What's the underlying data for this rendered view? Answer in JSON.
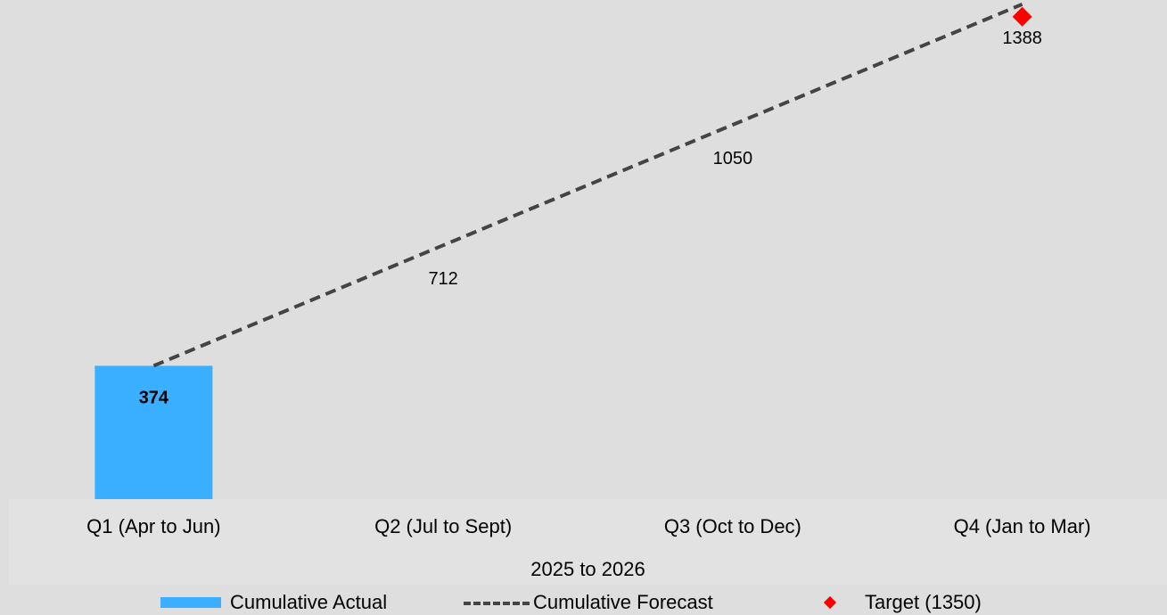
{
  "chart_data": {
    "type": "bar",
    "categories": [
      "Q1 (Apr to Jun)",
      "Q2 (Jul to Sept)",
      "Q3 (Oct to Dec)",
      "Q4 (Jan to Mar)"
    ],
    "series": [
      {
        "name": "Cumulative Actual",
        "kind": "bar",
        "values": [
          374,
          null,
          null,
          null
        ],
        "color": "#3aaeff",
        "labels": [
          "374",
          "",
          "",
          ""
        ]
      },
      {
        "name": "Cumulative Forecast",
        "kind": "line",
        "style": "dashed",
        "values": [
          374,
          712,
          1050,
          1388
        ],
        "color": "#444444",
        "labels": [
          "",
          "712",
          "1050",
          "1388"
        ]
      },
      {
        "name": "Target (1350)",
        "kind": "marker",
        "marker": "diamond",
        "values": [
          null,
          null,
          null,
          1350
        ],
        "color": "#ff0000"
      }
    ],
    "xlabel": "2025 to 2026",
    "ylabel": "",
    "ylim": [
      0,
      1400
    ],
    "grid": false,
    "legend_position": "bottom"
  }
}
